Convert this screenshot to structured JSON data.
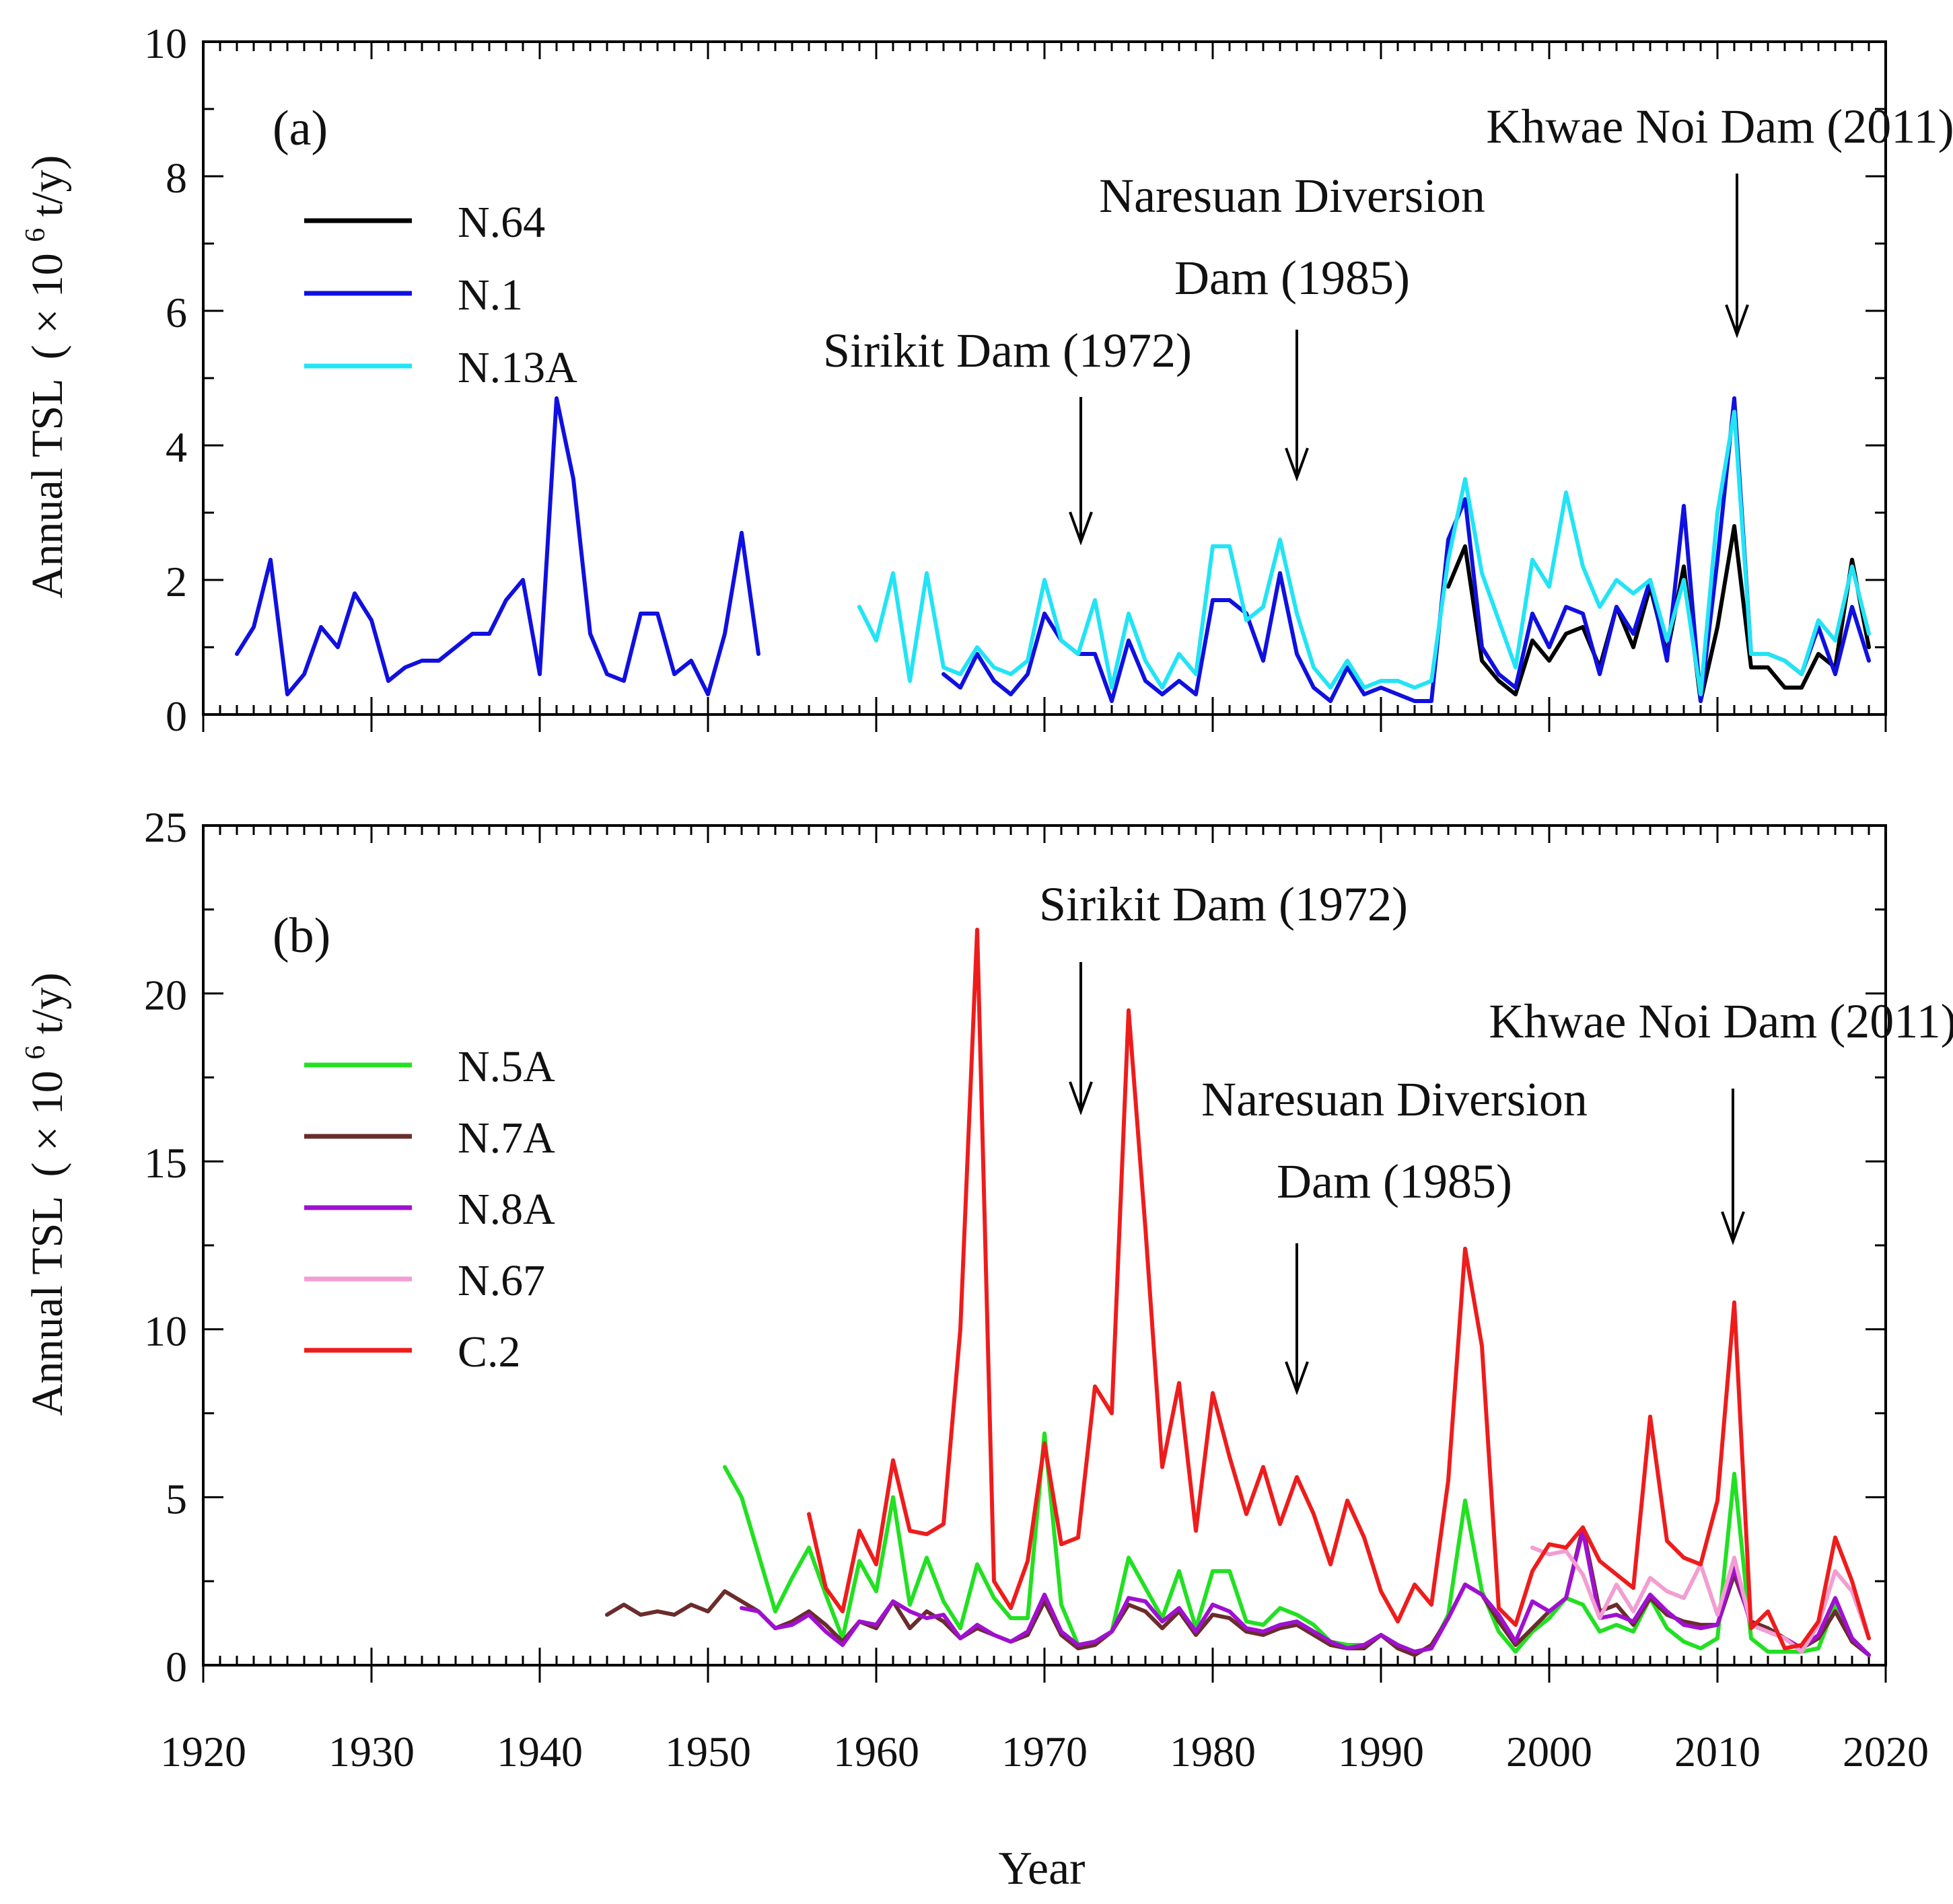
{
  "chart_data": [
    {
      "type": "line",
      "panel_label": "(a)",
      "ylabel_main": "Annual TSL",
      "ylabel_unit": "( × 10",
      "ylabel_exp": "6",
      "ylabel_tail": " t/y)",
      "xlim": [
        1920,
        2020
      ],
      "ylim": [
        0,
        10
      ],
      "yticks": [
        0,
        2,
        4,
        6,
        8,
        10
      ],
      "grid": false,
      "legend_position": "upper-left",
      "annotations": [
        {
          "text": "Sirikit Dam (1972)",
          "year": 1972
        },
        {
          "text": "Naresuan Diversion",
          "line2": "Dam (1985)",
          "year": 1985
        },
        {
          "text": "Khwae Noi Dam (2011)",
          "year": 2011
        }
      ],
      "series": [
        {
          "name": "N.64",
          "color": "#000000",
          "x": [
            1994,
            1995,
            1996,
            1997,
            1998,
            1999,
            2000,
            2001,
            2002,
            2003,
            2004,
            2005,
            2006,
            2007,
            2008,
            2009,
            2010,
            2011,
            2012,
            2013,
            2014,
            2015,
            2016,
            2017,
            2018,
            2019
          ],
          "y": [
            1.9,
            2.5,
            0.8,
            0.5,
            0.3,
            1.1,
            0.8,
            1.2,
            1.3,
            0.7,
            1.6,
            1.0,
            1.9,
            0.9,
            2.2,
            0.2,
            1.3,
            2.8,
            0.7,
            0.7,
            0.4,
            0.4,
            0.9,
            0.7,
            2.3,
            1.0
          ]
        },
        {
          "name": "N.1",
          "color": "#1010e0",
          "x": [
            1922,
            1923,
            1924,
            1925,
            1926,
            1927,
            1928,
            1929,
            1930,
            1931,
            1932,
            1933,
            1934,
            1935,
            1936,
            1937,
            1938,
            1939,
            1940,
            1941,
            1942,
            1943,
            1944,
            1945,
            1946,
            1947,
            1948,
            1949,
            1950,
            1951,
            1952,
            1953,
            null,
            1964,
            1965,
            1966,
            1967,
            1968,
            1969,
            1970,
            1971,
            1972,
            1973,
            1974,
            1975,
            1976,
            1977,
            1978,
            1979,
            1980,
            1981,
            1982,
            1983,
            1984,
            1985,
            1986,
            1987,
            1988,
            1989,
            1990,
            1991,
            1992,
            1993,
            1994,
            1995,
            1996,
            1997,
            1998,
            1999,
            2000,
            2001,
            2002,
            2003,
            2004,
            2005,
            2006,
            2007,
            2008,
            2009,
            2010,
            2011,
            2012,
            2013,
            2014,
            2015,
            2016,
            2017,
            2018,
            2019
          ],
          "y": [
            0.9,
            1.3,
            2.3,
            0.3,
            0.6,
            1.3,
            1.0,
            1.8,
            1.4,
            0.5,
            0.7,
            0.8,
            0.8,
            1.0,
            1.2,
            1.2,
            1.7,
            2.0,
            0.6,
            4.7,
            3.5,
            1.2,
            0.6,
            0.5,
            1.5,
            1.5,
            0.6,
            0.8,
            0.3,
            1.2,
            2.7,
            0.9,
            null,
            0.6,
            0.4,
            0.9,
            0.5,
            0.3,
            0.6,
            1.5,
            1.1,
            0.9,
            0.9,
            0.2,
            1.1,
            0.5,
            0.3,
            0.5,
            0.3,
            1.7,
            1.7,
            1.5,
            0.8,
            2.1,
            0.9,
            0.4,
            0.2,
            0.7,
            0.3,
            0.4,
            0.3,
            0.2,
            0.2,
            2.6,
            3.2,
            1.0,
            0.6,
            0.4,
            1.5,
            1.0,
            1.6,
            1.5,
            0.6,
            1.6,
            1.2,
            2.0,
            0.8,
            3.1,
            0.2,
            2.3,
            4.7,
            0.9,
            0.9,
            0.8,
            0.6,
            1.3,
            0.6,
            1.6,
            0.8
          ]
        },
        {
          "name": "N.13A",
          "color": "#22e4f5",
          "x": [
            1959,
            1960,
            1961,
            1962,
            1963,
            1964,
            1965,
            1966,
            1967,
            1968,
            1969,
            1970,
            1971,
            1972,
            1973,
            1974,
            1975,
            1976,
            1977,
            1978,
            1979,
            1980,
            1981,
            1982,
            1983,
            1984,
            1985,
            1986,
            1987,
            1988,
            1989,
            1990,
            1991,
            1992,
            1993,
            1994,
            1995,
            1996,
            1997,
            1998,
            1999,
            2000,
            2001,
            2002,
            2003,
            2004,
            2005,
            2006,
            2007,
            2008,
            2009,
            2010,
            2011,
            2012,
            2013,
            2014,
            2015,
            2016,
            2017,
            2018,
            2019
          ],
          "y": [
            1.6,
            1.1,
            2.1,
            0.5,
            2.1,
            0.7,
            0.6,
            1.0,
            0.7,
            0.6,
            0.8,
            2.0,
            1.1,
            0.9,
            1.7,
            0.4,
            1.5,
            0.8,
            0.4,
            0.9,
            0.6,
            2.5,
            2.5,
            1.4,
            1.6,
            2.6,
            1.5,
            0.7,
            0.4,
            0.8,
            0.4,
            0.5,
            0.5,
            0.4,
            0.5,
            2.3,
            3.5,
            2.1,
            1.4,
            0.7,
            2.3,
            1.9,
            3.3,
            2.2,
            1.6,
            2.0,
            1.8,
            2.0,
            1.1,
            2.0,
            0.3,
            3.0,
            4.5,
            0.9,
            0.9,
            0.8,
            0.6,
            1.4,
            1.1,
            2.2,
            1.2
          ]
        }
      ]
    },
    {
      "type": "line",
      "panel_label": "(b)",
      "ylabel_main": "Annual TSL",
      "ylabel_unit": "( × 10",
      "ylabel_exp": "6",
      "ylabel_tail": " t/y)",
      "xlabel": "Year",
      "xlim": [
        1920,
        2020
      ],
      "xticks": [
        1920,
        1930,
        1940,
        1950,
        1960,
        1970,
        1980,
        1990,
        2000,
        2010,
        2020
      ],
      "ylim": [
        0,
        25
      ],
      "yticks": [
        0,
        5,
        10,
        15,
        20,
        25
      ],
      "grid": false,
      "legend_position": "left",
      "annotations": [
        {
          "text": "Sirikit Dam (1972)",
          "year": 1972
        },
        {
          "text": "Naresuan Diversion",
          "line2": "Dam (1985)",
          "year": 1985
        },
        {
          "text": "Khwae Noi Dam (2011)",
          "year": 2011
        }
      ],
      "series": [
        {
          "name": "N.5A",
          "color": "#22e022",
          "x": [
            1951,
            1952,
            1953,
            1954,
            1955,
            1956,
            1957,
            1958,
            1959,
            1960,
            1961,
            1962,
            1963,
            1964,
            1965,
            1966,
            1967,
            1968,
            1969,
            1970,
            1971,
            1972,
            1973,
            1974,
            1975,
            1976,
            1977,
            1978,
            1979,
            1980,
            1981,
            1982,
            1983,
            1984,
            1985,
            1986,
            1987,
            1988,
            1989,
            1990,
            1991,
            1992,
            1993,
            1994,
            1995,
            1996,
            1997,
            1998,
            1999,
            2000,
            2001,
            2002,
            2003,
            2004,
            2005,
            2006,
            2007,
            2008,
            2009,
            2010,
            2011,
            2012,
            2013,
            2014,
            2015,
            2016,
            2017,
            2018,
            2019
          ],
          "y": [
            5.9,
            5.0,
            3.3,
            1.6,
            2.6,
            3.5,
            2.1,
            0.8,
            3.1,
            2.2,
            5.0,
            1.8,
            3.2,
            1.9,
            1.1,
            3.0,
            2.0,
            1.4,
            1.4,
            6.9,
            1.8,
            0.6,
            0.7,
            1.0,
            3.2,
            2.3,
            1.4,
            2.8,
            1.1,
            2.8,
            2.8,
            1.3,
            1.2,
            1.7,
            1.5,
            1.2,
            0.7,
            0.6,
            0.6,
            0.9,
            0.6,
            0.4,
            0.5,
            1.5,
            4.9,
            2.2,
            1.0,
            0.4,
            1.0,
            1.4,
            2.0,
            1.8,
            1.0,
            1.2,
            1.0,
            2.0,
            1.1,
            0.7,
            0.5,
            0.8,
            5.7,
            0.8,
            0.4,
            0.4,
            0.4,
            0.5,
            1.8,
            0.8,
            0.3
          ]
        },
        {
          "name": "N.7A",
          "color": "#6b2c2c",
          "x": [
            1944,
            1945,
            1946,
            1947,
            1948,
            1949,
            1950,
            1951,
            1952,
            1953,
            1954,
            1955,
            1956,
            1957,
            1958,
            1959,
            1960,
            1961,
            1962,
            1963,
            1964,
            1965,
            1966,
            1967,
            1968,
            1969,
            1970,
            1971,
            1972,
            1973,
            1974,
            1975,
            1976,
            1977,
            1978,
            1979,
            1980,
            1981,
            1982,
            1983,
            1984,
            1985,
            1986,
            1987,
            1988,
            1989,
            1990,
            1991,
            1992,
            1993,
            1994,
            1995,
            1996,
            1997,
            1998,
            1999,
            2000,
            2001,
            2002,
            2003,
            2004,
            2005,
            2006,
            2007,
            2008,
            2009,
            2010,
            2011,
            2012,
            2013,
            2014,
            2015,
            2016,
            2017,
            2018,
            2019
          ],
          "y": [
            1.5,
            1.8,
            1.5,
            1.6,
            1.5,
            1.8,
            1.6,
            2.2,
            1.9,
            1.6,
            1.1,
            1.3,
            1.6,
            1.2,
            0.7,
            1.3,
            1.1,
            1.9,
            1.1,
            1.6,
            1.3,
            0.8,
            1.1,
            0.9,
            0.7,
            0.9,
            1.9,
            0.9,
            0.5,
            0.6,
            1.0,
            1.8,
            1.6,
            1.1,
            1.6,
            0.9,
            1.5,
            1.4,
            1.0,
            0.9,
            1.1,
            1.2,
            0.9,
            0.6,
            0.5,
            0.5,
            0.9,
            0.5,
            0.3,
            0.6,
            1.4,
            2.4,
            2.1,
            1.3,
            0.6,
            1.1,
            1.6,
            2.0,
            4.1,
            1.6,
            1.8,
            1.2,
            2.0,
            1.5,
            1.3,
            1.2,
            1.2,
            2.7,
            1.3,
            1.1,
            0.8,
            0.5,
            0.8,
            1.6,
            0.7,
            0.3
          ]
        },
        {
          "name": "N.8A",
          "color": "#a010d0",
          "x": [
            1952,
            1953,
            1954,
            1955,
            1956,
            1957,
            1958,
            1959,
            1960,
            1961,
            1962,
            1963,
            1964,
            1965,
            1966,
            1967,
            1968,
            1969,
            1970,
            1971,
            1972,
            1973,
            1974,
            1975,
            1976,
            1977,
            1978,
            1979,
            1980,
            1981,
            1982,
            1983,
            1984,
            1985,
            1986,
            1987,
            1988,
            1989,
            1990,
            1991,
            1992,
            1993,
            1994,
            1995,
            1996,
            1997,
            1998,
            1999,
            2000,
            2001,
            2002,
            2003,
            2004,
            2005,
            2006,
            2007,
            2008,
            2009,
            2010,
            2011,
            2012,
            2013,
            2014,
            2015,
            2016,
            2017,
            2018,
            2019
          ],
          "y": [
            1.7,
            1.6,
            1.1,
            1.2,
            1.5,
            1.0,
            0.6,
            1.3,
            1.2,
            1.9,
            1.6,
            1.4,
            1.5,
            0.8,
            1.2,
            0.9,
            0.7,
            1.0,
            2.1,
            1.0,
            0.6,
            0.7,
            1.0,
            2.0,
            1.9,
            1.3,
            1.7,
            1.0,
            1.8,
            1.6,
            1.1,
            1.0,
            1.2,
            1.3,
            1.0,
            0.7,
            0.5,
            0.6,
            0.9,
            0.6,
            0.4,
            0.5,
            1.4,
            2.4,
            2.1,
            1.5,
            0.7,
            1.9,
            1.6,
            2.0,
            4.0,
            1.4,
            1.5,
            1.3,
            2.1,
            1.6,
            1.2,
            1.1,
            1.2,
            2.9,
            1.2,
            1.0,
            0.8,
            0.5,
            0.9,
            2.0,
            0.8,
            0.3
          ]
        },
        {
          "name": "N.67",
          "color": "#f29ed2",
          "x": [
            1999,
            2000,
            2001,
            2002,
            2003,
            2004,
            2005,
            2006,
            2007,
            2008,
            2009,
            2010,
            2011,
            2012,
            2013,
            2014,
            2015,
            2016,
            2017,
            2018,
            2019
          ],
          "y": [
            3.5,
            3.3,
            3.4,
            2.7,
            1.4,
            2.4,
            1.6,
            2.6,
            2.2,
            2.0,
            3.0,
            1.5,
            3.2,
            1.2,
            1.0,
            0.8,
            0.4,
            1.2,
            2.8,
            2.2,
            0.8
          ]
        },
        {
          "name": "C.2",
          "color": "#ee1c1c",
          "x": [
            1956,
            1957,
            1958,
            1959,
            1960,
            1961,
            1962,
            1963,
            1964,
            1965,
            1966,
            1967,
            1968,
            1969,
            1970,
            1971,
            1972,
            1973,
            1974,
            1975,
            1976,
            1977,
            1978,
            1979,
            1980,
            1981,
            1982,
            1983,
            1984,
            1985,
            1986,
            1987,
            1988,
            1989,
            1990,
            1991,
            1992,
            1993,
            1994,
            1995,
            1996,
            1997,
            1998,
            1999,
            2000,
            2001,
            2002,
            2003,
            2004,
            2005,
            2006,
            2007,
            2008,
            2009,
            2010,
            2011,
            2012,
            2013,
            2014,
            2015,
            2016,
            2017,
            2018,
            2019
          ],
          "y": [
            4.5,
            2.3,
            1.6,
            4.0,
            3.0,
            6.1,
            4.0,
            3.9,
            4.2,
            10.0,
            21.9,
            2.5,
            1.7,
            3.1,
            6.6,
            3.6,
            3.8,
            8.3,
            7.5,
            19.5,
            13.0,
            5.9,
            8.4,
            4.0,
            8.1,
            6.2,
            4.5,
            5.9,
            4.2,
            5.6,
            4.5,
            3.0,
            4.9,
            3.8,
            2.2,
            1.3,
            2.4,
            1.8,
            5.5,
            12.4,
            9.5,
            1.7,
            1.2,
            2.8,
            3.6,
            3.5,
            4.1,
            3.1,
            2.7,
            2.3,
            7.4,
            3.7,
            3.2,
            3.0,
            4.9,
            10.8,
            1.1,
            1.6,
            0.5,
            0.6,
            1.3,
            3.8,
            2.5,
            0.8
          ]
        }
      ]
    }
  ]
}
